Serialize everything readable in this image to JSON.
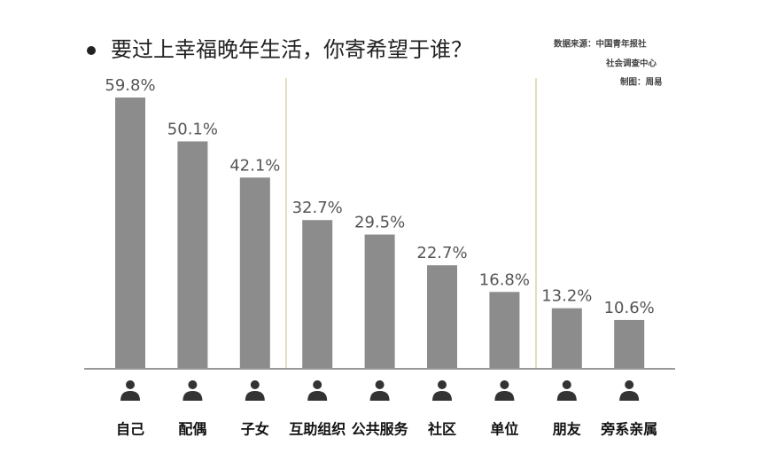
{
  "chart_data": {
    "type": "bar",
    "title": "要过上幸福晚年生活，你寄希望于谁？",
    "source": [
      "数据来源：中国青年报社",
      "社会调查中心",
      "制图：周易"
    ],
    "categories": [
      "自己",
      "配偶",
      "子女",
      "互助组织",
      "公共服务",
      "社区",
      "单位",
      "朋友",
      "旁系亲属"
    ],
    "values": [
      59.8,
      50.1,
      42.1,
      32.7,
      29.5,
      22.7,
      16.8,
      13.2,
      10.6
    ],
    "value_labels": [
      "59.8%",
      "50.1%",
      "42.1%",
      "32.7%",
      "29.5%",
      "22.7%",
      "16.8%",
      "13.2%",
      "10.6%"
    ],
    "color": "#8c8c8c"
  }
}
